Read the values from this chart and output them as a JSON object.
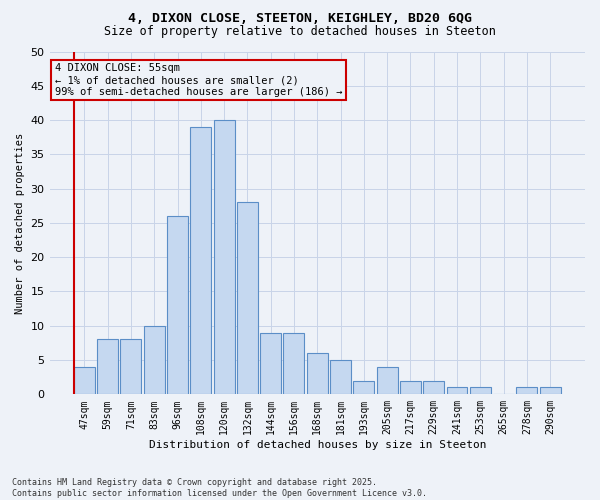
{
  "title_line1": "4, DIXON CLOSE, STEETON, KEIGHLEY, BD20 6QG",
  "title_line2": "Size of property relative to detached houses in Steeton",
  "xlabel": "Distribution of detached houses by size in Steeton",
  "ylabel": "Number of detached properties",
  "bar_labels": [
    "47sqm",
    "59sqm",
    "71sqm",
    "83sqm",
    "96sqm",
    "108sqm",
    "120sqm",
    "132sqm",
    "144sqm",
    "156sqm",
    "168sqm",
    "181sqm",
    "193sqm",
    "205sqm",
    "217sqm",
    "229sqm",
    "241sqm",
    "253sqm",
    "265sqm",
    "278sqm",
    "290sqm"
  ],
  "bar_heights": [
    4,
    8,
    8,
    10,
    26,
    39,
    40,
    28,
    9,
    9,
    6,
    5,
    2,
    4,
    2,
    2,
    1,
    1,
    0,
    1,
    1
  ],
  "bar_color": "#c5d8f0",
  "bar_edge_color": "#5b8ec7",
  "grid_color": "#c8d4e8",
  "bg_color": "#eef2f8",
  "annotation_box_color": "#cc0000",
  "annotation_text": "4 DIXON CLOSE: 55sqm\n← 1% of detached houses are smaller (2)\n99% of semi-detached houses are larger (186) →",
  "footer": "Contains HM Land Registry data © Crown copyright and database right 2025.\nContains public sector information licensed under the Open Government Licence v3.0.",
  "ylim_max": 50,
  "yticks": [
    0,
    5,
    10,
    15,
    20,
    25,
    30,
    35,
    40,
    45,
    50
  ]
}
